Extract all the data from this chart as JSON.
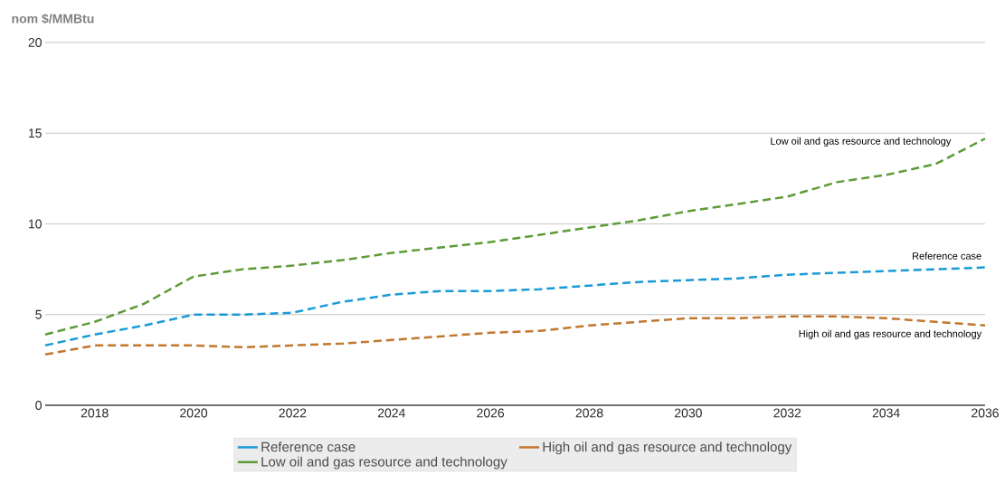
{
  "chart_data": {
    "type": "line",
    "ylabel": "nom $/MMBtu",
    "x": [
      2017,
      2018,
      2019,
      2020,
      2021,
      2022,
      2023,
      2024,
      2025,
      2026,
      2027,
      2028,
      2029,
      2030,
      2031,
      2032,
      2033,
      2034,
      2035,
      2036
    ],
    "series": [
      {
        "name": "Reference case",
        "color": "#1a9bd7",
        "values": [
          3.3,
          3.9,
          4.4,
          5.0,
          5.0,
          5.1,
          5.7,
          6.1,
          6.3,
          6.3,
          6.4,
          6.6,
          6.8,
          6.9,
          7.0,
          7.2,
          7.3,
          7.4,
          7.5,
          7.6
        ]
      },
      {
        "name": "High oil and gas resource and technology",
        "color": "#c2772f",
        "values": [
          2.8,
          3.3,
          3.3,
          3.3,
          3.2,
          3.3,
          3.4,
          3.6,
          3.8,
          4.0,
          4.1,
          4.4,
          4.6,
          4.8,
          4.8,
          4.9,
          4.9,
          4.8,
          4.6,
          4.4
        ]
      },
      {
        "name": "Low oil and gas resource and technology",
        "color": "#5d9b37",
        "values": [
          3.9,
          4.6,
          5.6,
          7.1,
          7.5,
          7.7,
          8.0,
          8.4,
          8.7,
          9.0,
          9.4,
          9.8,
          10.2,
          10.7,
          11.1,
          11.5,
          12.3,
          12.7,
          13.3,
          14.7
        ]
      }
    ],
    "xlim": [
      2017,
      2036
    ],
    "xticks": [
      2018,
      2020,
      2022,
      2024,
      2026,
      2028,
      2030,
      2032,
      2034,
      2036
    ],
    "ylim": [
      0,
      20
    ],
    "yticks": [
      0,
      5,
      10,
      15,
      20
    ],
    "grid": "y",
    "legend": "bottom",
    "line_style": "dashed",
    "marker": "none",
    "annotations": [
      "Low oil and gas resource and technology",
      "Reference case",
      "High oil and gas resource and technology"
    ]
  }
}
